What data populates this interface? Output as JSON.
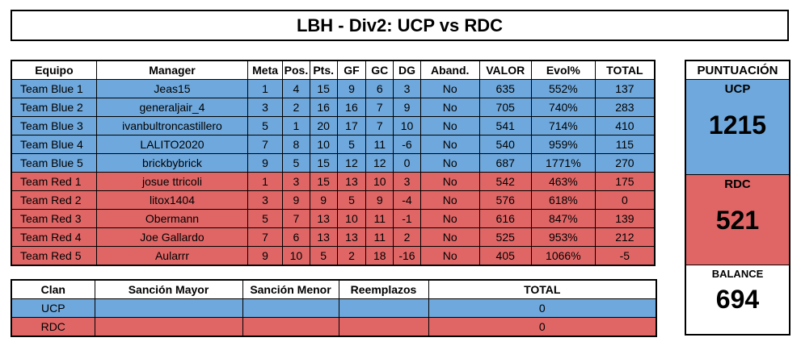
{
  "title": "LBH - Div2: UCP vs RDC",
  "main_table": {
    "headers": [
      "Equipo",
      "Manager",
      "Meta",
      "Pos.",
      "Pts.",
      "GF",
      "GC",
      "DG",
      "Aband.",
      "VALOR",
      "Evol%",
      "TOTAL"
    ],
    "rows": [
      {
        "team": "Team Blue 1",
        "manager": "Jeas15",
        "meta": "1",
        "pos": "4",
        "pts": "15",
        "gf": "9",
        "gc": "6",
        "dg": "3",
        "aband": "No",
        "valor": "635",
        "evol": "552%",
        "total": "137"
      },
      {
        "team": "Team Blue 2",
        "manager": "generaljair_4",
        "meta": "3",
        "pos": "2",
        "pts": "16",
        "gf": "16",
        "gc": "7",
        "dg": "9",
        "aband": "No",
        "valor": "705",
        "evol": "740%",
        "total": "283"
      },
      {
        "team": "Team Blue 3",
        "manager": "ivanbultroncastillero",
        "meta": "5",
        "pos": "1",
        "pts": "20",
        "gf": "17",
        "gc": "7",
        "dg": "10",
        "aband": "No",
        "valor": "541",
        "evol": "714%",
        "total": "410"
      },
      {
        "team": "Team Blue 4",
        "manager": "LALITO2020",
        "meta": "7",
        "pos": "8",
        "pts": "10",
        "gf": "5",
        "gc": "11",
        "dg": "-6",
        "aband": "No",
        "valor": "540",
        "evol": "959%",
        "total": "115"
      },
      {
        "team": "Team Blue 5",
        "manager": "brickbybrick",
        "meta": "9",
        "pos": "5",
        "pts": "15",
        "gf": "12",
        "gc": "12",
        "dg": "0",
        "aband": "No",
        "valor": "687",
        "evol": "1771%",
        "total": "270"
      },
      {
        "team": "Team Red 1",
        "manager": "josue ttricoli",
        "meta": "1",
        "pos": "3",
        "pts": "15",
        "gf": "13",
        "gc": "10",
        "dg": "3",
        "aband": "No",
        "valor": "542",
        "evol": "463%",
        "total": "175"
      },
      {
        "team": "Team Red 2",
        "manager": "litox1404",
        "meta": "3",
        "pos": "9",
        "pts": "9",
        "gf": "5",
        "gc": "9",
        "dg": "-4",
        "aband": "No",
        "valor": "576",
        "evol": "618%",
        "total": "0"
      },
      {
        "team": "Team Red 3",
        "manager": "Obermann",
        "meta": "5",
        "pos": "7",
        "pts": "13",
        "gf": "10",
        "gc": "11",
        "dg": "-1",
        "aband": "No",
        "valor": "616",
        "evol": "847%",
        "total": "139"
      },
      {
        "team": "Team Red 4",
        "manager": "Joe Gallardo",
        "meta": "7",
        "pos": "6",
        "pts": "13",
        "gf": "13",
        "gc": "11",
        "dg": "2",
        "aband": "No",
        "valor": "525",
        "evol": "953%",
        "total": "212"
      },
      {
        "team": "Team Red 5",
        "manager": "Aularrr",
        "meta": "9",
        "pos": "10",
        "pts": "5",
        "gf": "2",
        "gc": "18",
        "dg": "-16",
        "aband": "No",
        "valor": "405",
        "evol": "1066%",
        "total": "-5"
      }
    ]
  },
  "clan_table": {
    "headers": [
      "Clan",
      "Sanción Mayor",
      "Sanción Menor",
      "Reemplazos",
      "TOTAL"
    ],
    "rows": [
      {
        "clan": "UCP",
        "mayor": "",
        "menor": "",
        "reemplazos": "",
        "total": "0"
      },
      {
        "clan": "RDC",
        "mayor": "",
        "menor": "",
        "reemplazos": "",
        "total": "0"
      }
    ]
  },
  "score": {
    "header": "PUNTUACIÓN",
    "team1_label": "UCP",
    "team1_value": "1215",
    "team2_label": "RDC",
    "team2_value": "521",
    "balance_label": "BALANCE",
    "balance_value": "694"
  },
  "colors": {
    "blue": "#6fa8dc",
    "red": "#e06666"
  }
}
